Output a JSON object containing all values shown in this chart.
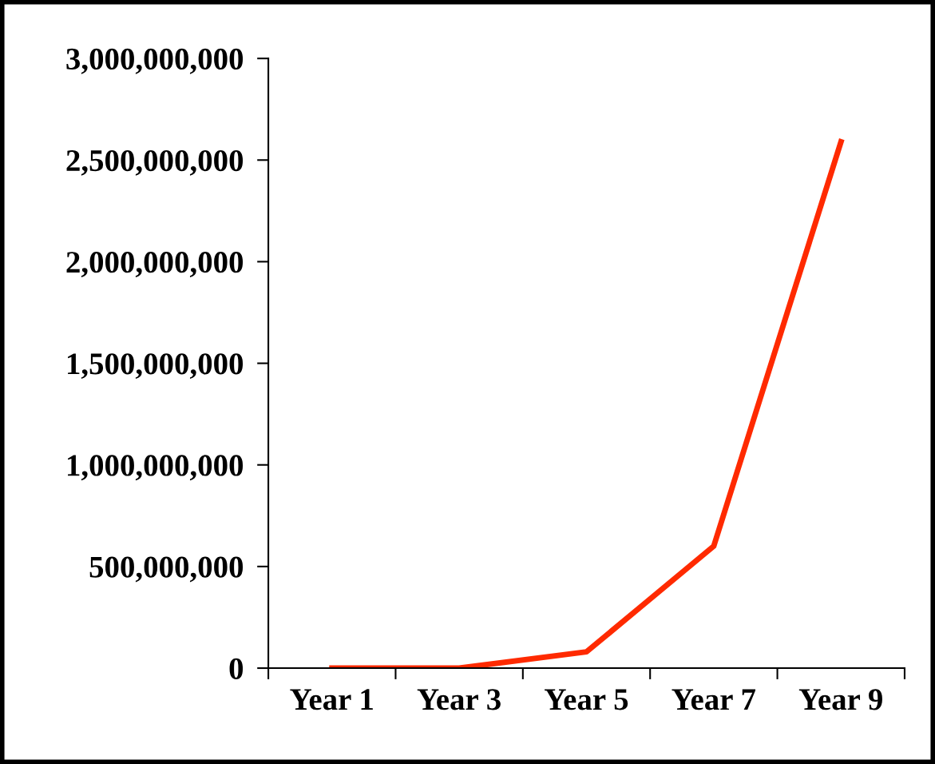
{
  "chart_data": {
    "type": "line",
    "categories": [
      "Year 1",
      "Year 3",
      "Year 5",
      "Year 7",
      "Year 9"
    ],
    "series": [
      {
        "color": "#ff2a00",
        "values": [
          0,
          0,
          80000000,
          600000000,
          2590000000
        ]
      }
    ],
    "ylim": [
      0,
      3000000000
    ],
    "yticks": [
      {
        "value": 0,
        "label": "0"
      },
      {
        "value": 500000000,
        "label": "500,000,000"
      },
      {
        "value": 1000000000,
        "label": "1,000,000,000"
      },
      {
        "value": 1500000000,
        "label": "1,500,000,000"
      },
      {
        "value": 2000000000,
        "label": "2,000,000,000"
      },
      {
        "value": 2500000000,
        "label": "2,500,000,000"
      },
      {
        "value": 3000000000,
        "label": "3,000,000,000"
      }
    ],
    "grid": false,
    "legend": false,
    "marker": "none",
    "line_style": "solid"
  }
}
